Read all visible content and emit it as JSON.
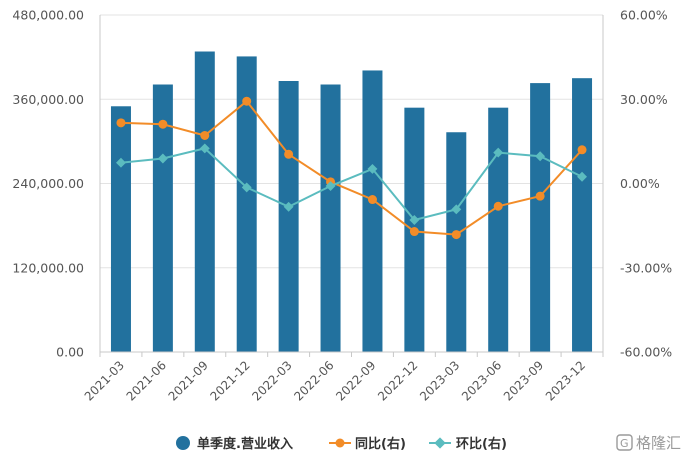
{
  "chart_data": {
    "type": "bar",
    "categories": [
      "2021-03",
      "2021-06",
      "2021-09",
      "2021-12",
      "2022-03",
      "2022-06",
      "2022-09",
      "2022-12",
      "2023-03",
      "2023-06",
      "2023-09",
      "2023-12"
    ],
    "series": [
      {
        "name": "单季度.营业收入",
        "type": "bar",
        "axis": "left",
        "color": "#22719e",
        "values": [
          350000,
          381000,
          428000,
          421000,
          386000,
          381000,
          401000,
          348000,
          313000,
          348000,
          383000,
          390000
        ]
      },
      {
        "name": "同比(右)",
        "type": "line",
        "axis": "right",
        "color": "#f28c28",
        "values": [
          21.6,
          21.1,
          17.1,
          29.3,
          10.4,
          0.6,
          -5.7,
          -17.1,
          -18.2,
          -8.1,
          -4.5,
          12.0
        ]
      },
      {
        "name": "环比(右)",
        "type": "line",
        "axis": "right",
        "color": "#5bbcbf",
        "values": [
          7.4,
          8.9,
          12.5,
          -1.4,
          -8.3,
          -0.9,
          5.2,
          -13.0,
          -9.2,
          11.0,
          9.7,
          2.4
        ]
      }
    ],
    "y_left": {
      "ylim": [
        0,
        480000
      ],
      "ticks": [
        "0.00",
        "120,000.00",
        "240,000.00",
        "360,000.00",
        "480,000.00"
      ]
    },
    "y_right": {
      "ylim": [
        -60,
        60
      ],
      "ticks": [
        "-60.00%",
        "-30.00%",
        "0.00%",
        "30.00%",
        "60.00%"
      ]
    },
    "grid": true,
    "legend_position": "bottom"
  },
  "watermark": "格隆汇"
}
